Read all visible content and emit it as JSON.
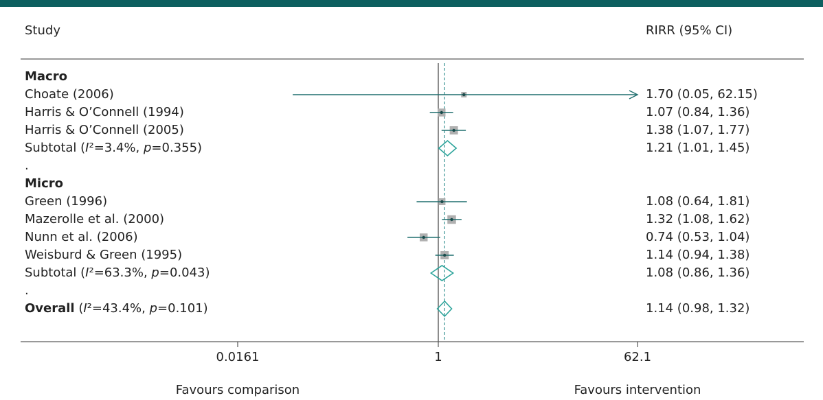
{
  "chart_data": {
    "type": "forest",
    "columns": {
      "study": "Study",
      "ci": "RIRR (95% CI)"
    },
    "x_scale": "log",
    "xlim": [
      0.00026,
      3860
    ],
    "ticks": [
      {
        "value": 0.0161,
        "label": "0.0161"
      },
      {
        "value": 1,
        "label": "1"
      },
      {
        "value": 62.1,
        "label": "62.1"
      }
    ],
    "null_line": 1,
    "overall_effect": 1.14,
    "favours": {
      "left": "Favours comparison",
      "right": "Favours intervention"
    },
    "rows": [
      {
        "kind": "group",
        "label": "Macro"
      },
      {
        "kind": "study",
        "label": "Choate (2006)",
        "est": 1.7,
        "lo": 0.05,
        "hi": 62.15,
        "ci_text": "1.70 (0.05, 62.15)",
        "arrow_right": true,
        "weight": 0.2
      },
      {
        "kind": "study",
        "label": "Harris & O’Connell (1994)",
        "est": 1.07,
        "lo": 0.84,
        "hi": 1.36,
        "ci_text": "1.07 (0.84, 1.36)",
        "weight": 0.55
      },
      {
        "kind": "study",
        "label": "Harris & O’Connell (2005)",
        "est": 1.38,
        "lo": 1.07,
        "hi": 1.77,
        "ci_text": "1.38 (1.07, 1.77)",
        "weight": 0.6
      },
      {
        "kind": "subtotal",
        "label": "Subtotal  (I²=3.4%, p=0.355)",
        "label_html": "Subtotal  (<i>I</i>²=3.4%, <i>p</i>=0.355)",
        "est": 1.21,
        "lo": 1.01,
        "hi": 1.45,
        "ci_text": "1.21 (1.01, 1.45)"
      },
      {
        "kind": "spacer",
        "label": "."
      },
      {
        "kind": "group",
        "label": "Micro"
      },
      {
        "kind": "study",
        "label": "Green (1996)",
        "est": 1.08,
        "lo": 0.64,
        "hi": 1.81,
        "ci_text": "1.08 (0.64, 1.81)",
        "weight": 0.4
      },
      {
        "kind": "study",
        "label": "Mazerolle et al. (2000)",
        "est": 1.32,
        "lo": 1.08,
        "hi": 1.62,
        "ci_text": "1.32 (1.08, 1.62)",
        "weight": 0.65
      },
      {
        "kind": "study",
        "label": "Nunn et al. (2006)",
        "est": 0.74,
        "lo": 0.53,
        "hi": 1.04,
        "ci_text": "0.74 (0.53, 1.04)",
        "weight": 0.55
      },
      {
        "kind": "study",
        "label": "Weisburd & Green (1995)",
        "est": 1.14,
        "lo": 0.94,
        "hi": 1.38,
        "ci_text": "1.14 (0.94, 1.38)",
        "weight": 0.6
      },
      {
        "kind": "subtotal",
        "label": "Subtotal (I²=63.3%, p=0.043)",
        "label_html": "Subtotal (<i>I</i>²=63.3%, <i>p</i>=0.043)",
        "est": 1.08,
        "lo": 0.86,
        "hi": 1.36,
        "ci_text": "1.08 (0.86, 1.36)"
      },
      {
        "kind": "spacer",
        "label": "."
      },
      {
        "kind": "overall",
        "label": "Overall (I²=43.4%, p=0.101)",
        "label_html": "<b>Overall</b> (<i>I</i>²=43.4%, <i>p</i>=0.101)",
        "est": 1.14,
        "lo": 0.98,
        "hi": 1.32,
        "ci_text": "1.14 (0.98, 1.32)"
      }
    ],
    "colors": {
      "band": "#0d5f5f",
      "ci_line": "#1f6e6e",
      "diamond": "#2aa39a",
      "null_line": "#666666",
      "effect_line": "#5fa9a9",
      "box": "#b0b0b0",
      "text": "#222222"
    }
  }
}
